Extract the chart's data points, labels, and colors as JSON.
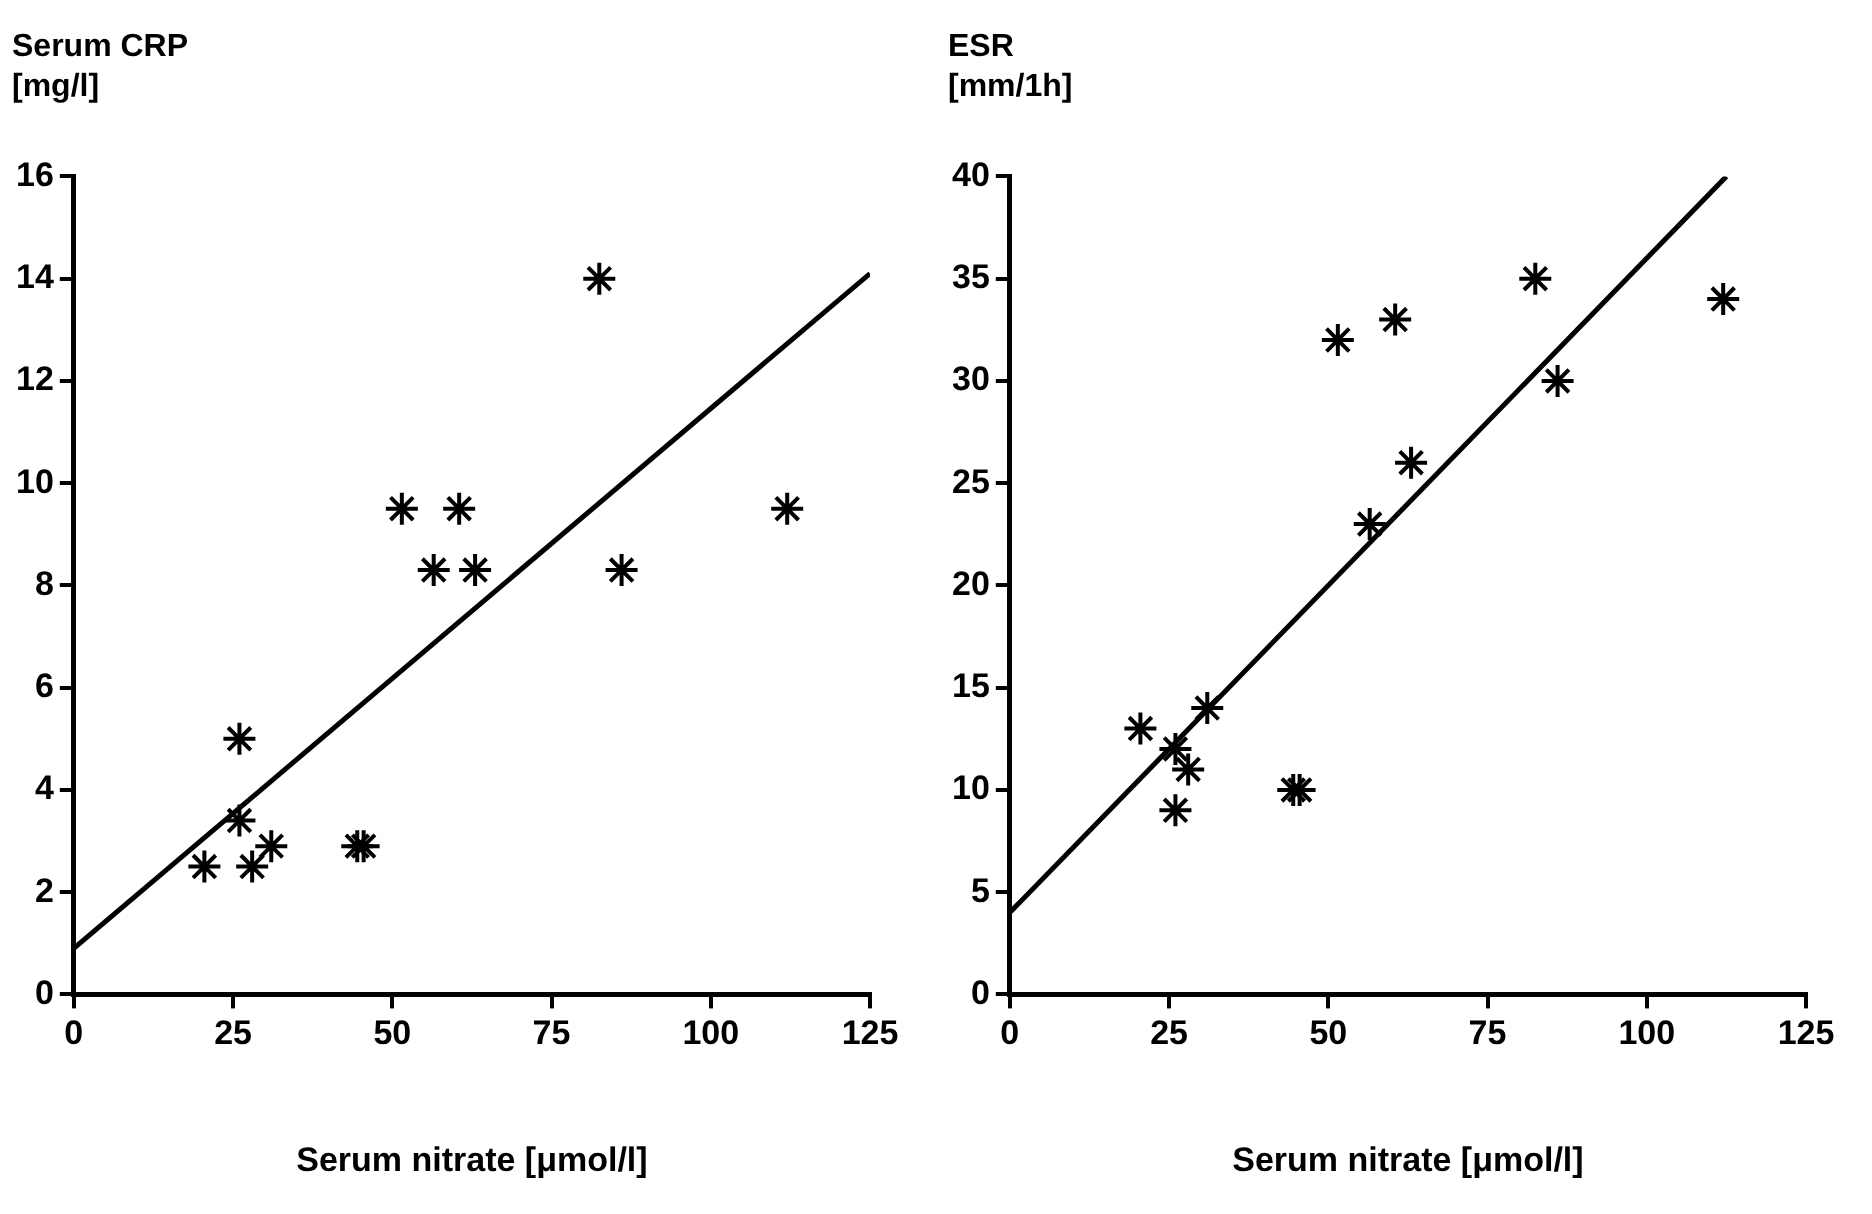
{
  "chart_data": [
    {
      "type": "scatter",
      "ylabel": "Serum CRP\n[mg/l]",
      "xlabel": "Serum nitrate [μmol/l]",
      "xlim": [
        0,
        125
      ],
      "xticks": [
        0,
        25,
        50,
        75,
        100,
        125
      ],
      "ylim": [
        0,
        16
      ],
      "yticks": [
        0,
        2,
        4,
        6,
        8,
        10,
        12,
        14,
        16
      ],
      "marker": "cross",
      "series": [
        {
          "type": "scatter",
          "color": "#000000",
          "x": [
            20.5,
            26,
            26,
            28,
            31,
            44.5,
            45.5,
            51.5,
            56.5,
            60.5,
            63,
            82.5,
            86,
            112
          ],
          "values": [
            2.5,
            5,
            3.4,
            2.5,
            2.9,
            2.9,
            2.9,
            9.5,
            8.3,
            9.5,
            8.3,
            14,
            8.3,
            9.5
          ]
        },
        {
          "type": "line",
          "color": "#000000",
          "marker": "none",
          "x": [
            0,
            125
          ],
          "values": [
            0.9,
            14.1
          ]
        }
      ]
    },
    {
      "type": "scatter",
      "ylabel": "ESR\n[mm/1h]",
      "xlabel": "Serum nitrate [μmol/l]",
      "xlim": [
        0,
        125
      ],
      "xticks": [
        0,
        25,
        50,
        75,
        100,
        125
      ],
      "ylim": [
        0,
        40
      ],
      "yticks": [
        0,
        5,
        10,
        15,
        20,
        25,
        30,
        35,
        40
      ],
      "marker": "cross",
      "series": [
        {
          "type": "scatter",
          "color": "#000000",
          "x": [
            20.5,
            26,
            26,
            28,
            31,
            44.5,
            45.5,
            51.5,
            56.5,
            60.5,
            63,
            82.5,
            86,
            112
          ],
          "values": [
            13,
            12,
            9,
            11,
            14,
            10,
            10,
            32,
            23,
            33,
            26,
            35,
            30,
            34
          ]
        },
        {
          "type": "line",
          "color": "#000000",
          "marker": "none",
          "x": [
            0,
            112.5
          ],
          "values": [
            4,
            40
          ]
        }
      ]
    }
  ]
}
